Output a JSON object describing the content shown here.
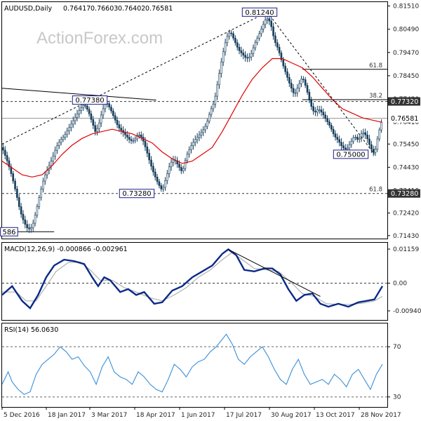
{
  "chart_data": {
    "type": "candlestick",
    "symbol": "AUDUSD,Daily",
    "ohlc": [
      "0.76417",
      "0.76603",
      "0.76402",
      "0.76581"
    ],
    "watermark": "ActionForex.com",
    "price_ticks": [
      "0.81510",
      "0.80490",
      "0.79470",
      "0.78450",
      "0.77430",
      "0.76410",
      "0.75450",
      "0.74430",
      "0.73410",
      "0.72420",
      "0.71430"
    ],
    "price_tick_values": [
      0.8151,
      0.8049,
      0.7947,
      0.7845,
      0.7743,
      0.7641,
      0.7545,
      0.7443,
      0.7341,
      0.7242,
      0.7143
    ],
    "price_range": [
      0.713,
      0.8165
    ],
    "current_price": {
      "value": 0.76581,
      "label": "0.76581"
    },
    "level_tag": {
      "value": 0.7732,
      "label": "0.77320"
    },
    "level_tag_low": {
      "value": 0.7328,
      "label": "0.73280"
    },
    "annotations": [
      {
        "label": "0.81240",
        "value": 0.8124
      },
      {
        "label": "0.77380",
        "value": 0.7738
      },
      {
        "label": "0.73280",
        "value": 0.7328
      },
      {
        "label": "0.75000",
        "value": 0.75
      },
      {
        "label": "586",
        "value": 0.716
      }
    ],
    "fib_labels": [
      {
        "label": "61.8",
        "value": 0.7873
      },
      {
        "label": "38.2",
        "value": 0.774
      },
      {
        "label": "61.8",
        "value": 0.7328
      }
    ],
    "dates": [
      "5 Dec 2016",
      "18 Jan 2017",
      "3 Mar 2017",
      "18 Apr 2017",
      "1 Jun 2017",
      "17 Jul 2017",
      "30 Aug 2017",
      "13 Oct 2017",
      "28 Nov 2017"
    ],
    "price_path": [
      [
        0,
        0.753
      ],
      [
        6,
        0.746
      ],
      [
        10,
        0.74
      ],
      [
        14,
        0.733
      ],
      [
        18,
        0.725
      ],
      [
        22,
        0.72
      ],
      [
        26,
        0.717
      ],
      [
        30,
        0.718
      ],
      [
        34,
        0.725
      ],
      [
        38,
        0.733
      ],
      [
        42,
        0.74
      ],
      [
        46,
        0.744
      ],
      [
        50,
        0.748
      ],
      [
        54,
        0.753
      ],
      [
        58,
        0.756
      ],
      [
        62,
        0.758
      ],
      [
        66,
        0.761
      ],
      [
        70,
        0.764
      ],
      [
        74,
        0.767
      ],
      [
        78,
        0.77
      ],
      [
        82,
        0.772
      ],
      [
        86,
        0.769
      ],
      [
        90,
        0.764
      ],
      [
        93,
        0.76
      ],
      [
        96,
        0.762
      ],
      [
        100,
        0.769
      ],
      [
        104,
        0.773
      ],
      [
        108,
        0.77
      ],
      [
        112,
        0.766
      ],
      [
        116,
        0.762
      ],
      [
        120,
        0.76
      ],
      [
        124,
        0.758
      ],
      [
        128,
        0.756
      ],
      [
        132,
        0.756
      ],
      [
        136,
        0.759
      ],
      [
        140,
        0.757
      ],
      [
        144,
        0.752
      ],
      [
        148,
        0.746
      ],
      [
        152,
        0.741
      ],
      [
        156,
        0.737
      ],
      [
        160,
        0.734
      ],
      [
        164,
        0.74
      ],
      [
        168,
        0.746
      ],
      [
        172,
        0.748
      ],
      [
        176,
        0.745
      ],
      [
        180,
        0.742
      ],
      [
        184,
        0.749
      ],
      [
        188,
        0.753
      ],
      [
        192,
        0.756
      ],
      [
        196,
        0.758
      ],
      [
        200,
        0.76
      ],
      [
        204,
        0.763
      ],
      [
        208,
        0.769
      ],
      [
        212,
        0.773
      ],
      [
        216,
        0.783
      ],
      [
        220,
        0.793
      ],
      [
        224,
        0.801
      ],
      [
        228,
        0.804
      ],
      [
        232,
        0.8
      ],
      [
        236,
        0.796
      ],
      [
        240,
        0.794
      ],
      [
        244,
        0.792
      ],
      [
        248,
        0.793
      ],
      [
        252,
        0.798
      ],
      [
        256,
        0.802
      ],
      [
        260,
        0.806
      ],
      [
        264,
        0.81
      ],
      [
        268,
        0.808
      ],
      [
        272,
        0.8
      ],
      [
        276,
        0.796
      ],
      [
        280,
        0.79
      ],
      [
        284,
        0.785
      ],
      [
        288,
        0.78
      ],
      [
        292,
        0.776
      ],
      [
        296,
        0.78
      ],
      [
        300,
        0.784
      ],
      [
        304,
        0.779
      ],
      [
        308,
        0.772
      ],
      [
        312,
        0.768
      ],
      [
        316,
        0.77
      ],
      [
        320,
        0.768
      ],
      [
        324,
        0.765
      ],
      [
        328,
        0.762
      ],
      [
        332,
        0.758
      ],
      [
        336,
        0.756
      ],
      [
        340,
        0.753
      ],
      [
        344,
        0.752
      ],
      [
        348,
        0.755
      ],
      [
        352,
        0.758
      ],
      [
        356,
        0.756
      ],
      [
        360,
        0.76
      ],
      [
        364,
        0.758
      ],
      [
        368,
        0.753
      ],
      [
        372,
        0.75
      ],
      [
        376,
        0.759
      ],
      [
        380,
        0.7658
      ]
    ],
    "sma_path": [
      [
        0,
        0.747
      ],
      [
        10,
        0.744
      ],
      [
        20,
        0.741
      ],
      [
        30,
        0.74
      ],
      [
        40,
        0.741
      ],
      [
        50,
        0.745
      ],
      [
        60,
        0.75
      ],
      [
        70,
        0.754
      ],
      [
        80,
        0.757
      ],
      [
        90,
        0.759
      ],
      [
        100,
        0.76
      ],
      [
        110,
        0.761
      ],
      [
        120,
        0.76
      ],
      [
        130,
        0.759
      ],
      [
        140,
        0.757
      ],
      [
        150,
        0.755
      ],
      [
        160,
        0.751
      ],
      [
        170,
        0.748
      ],
      [
        180,
        0.746
      ],
      [
        190,
        0.747
      ],
      [
        200,
        0.75
      ],
      [
        210,
        0.753
      ],
      [
        220,
        0.76
      ],
      [
        230,
        0.768
      ],
      [
        240,
        0.776
      ],
      [
        250,
        0.783
      ],
      [
        260,
        0.788
      ],
      [
        270,
        0.792
      ],
      [
        280,
        0.792
      ],
      [
        290,
        0.79
      ],
      [
        300,
        0.788
      ],
      [
        310,
        0.784
      ],
      [
        320,
        0.779
      ],
      [
        330,
        0.774
      ],
      [
        340,
        0.77
      ],
      [
        350,
        0.768
      ],
      [
        360,
        0.766
      ],
      [
        370,
        0.765
      ],
      [
        380,
        0.764
      ]
    ],
    "trendlines": [
      {
        "from": [
          0,
          0.7545
        ],
        "to": [
          265,
          0.8124
        ]
      },
      {
        "from": [
          0,
          0.779
        ],
        "to": [
          154,
          0.7738
        ]
      },
      {
        "from": [
          265,
          0.8124
        ],
        "to": [
          372,
          0.75
        ]
      }
    ],
    "macd": {
      "header": "MACD(12,26,9) -0.000866 -0.002961",
      "ticks": [
        "0.01159",
        "0.00",
        "-0.009408"
      ],
      "tick_values": [
        0.01159,
        0.0,
        -0.009408
      ],
      "range": [
        -0.0125,
        0.0135
      ],
      "macd_path": [
        [
          0,
          -0.004
        ],
        [
          10,
          -0.001
        ],
        [
          20,
          -0.006
        ],
        [
          28,
          -0.0085
        ],
        [
          36,
          -0.004
        ],
        [
          44,
          0.002
        ],
        [
          52,
          0.006
        ],
        [
          62,
          0.008
        ],
        [
          72,
          0.0075
        ],
        [
          82,
          0.0065
        ],
        [
          90,
          0.002
        ],
        [
          96,
          -0.001
        ],
        [
          102,
          0.002
        ],
        [
          108,
          0.001
        ],
        [
          118,
          -0.003
        ],
        [
          126,
          -0.002
        ],
        [
          134,
          -0.004
        ],
        [
          142,
          -0.003
        ],
        [
          152,
          -0.007
        ],
        [
          160,
          -0.0065
        ],
        [
          170,
          -0.0025
        ],
        [
          180,
          -0.001
        ],
        [
          190,
          0.002
        ],
        [
          200,
          0.004
        ],
        [
          210,
          0.006
        ],
        [
          220,
          0.01
        ],
        [
          226,
          0.0115
        ],
        [
          234,
          0.0095
        ],
        [
          242,
          0.0045
        ],
        [
          252,
          0.004
        ],
        [
          262,
          0.005
        ],
        [
          270,
          0.005
        ],
        [
          278,
          0.003
        ],
        [
          286,
          -0.002
        ],
        [
          294,
          -0.006
        ],
        [
          302,
          -0.004
        ],
        [
          310,
          -0.0035
        ],
        [
          318,
          -0.007
        ],
        [
          326,
          -0.008
        ],
        [
          336,
          -0.007
        ],
        [
          346,
          -0.008
        ],
        [
          356,
          -0.0065
        ],
        [
          364,
          -0.006
        ],
        [
          372,
          -0.0055
        ],
        [
          380,
          -0.001
        ]
      ],
      "signal_path": [
        [
          0,
          -0.003
        ],
        [
          14,
          -0.003
        ],
        [
          24,
          -0.006
        ],
        [
          34,
          -0.006
        ],
        [
          44,
          -0.001
        ],
        [
          54,
          0.004
        ],
        [
          66,
          0.007
        ],
        [
          78,
          0.0072
        ],
        [
          88,
          0.0045
        ],
        [
          98,
          0.001
        ],
        [
          110,
          0.001
        ],
        [
          122,
          -0.0015
        ],
        [
          134,
          -0.003
        ],
        [
          148,
          -0.005
        ],
        [
          160,
          -0.006
        ],
        [
          172,
          -0.004
        ],
        [
          184,
          -0.0015
        ],
        [
          196,
          0.002
        ],
        [
          208,
          0.0045
        ],
        [
          220,
          0.008
        ],
        [
          230,
          0.0105
        ],
        [
          240,
          0.008
        ],
        [
          252,
          0.005
        ],
        [
          264,
          0.0045
        ],
        [
          276,
          0.004
        ],
        [
          288,
          0.0005
        ],
        [
          300,
          -0.0035
        ],
        [
          312,
          -0.0045
        ],
        [
          324,
          -0.007
        ],
        [
          336,
          -0.0072
        ],
        [
          348,
          -0.0072
        ],
        [
          360,
          -0.0068
        ],
        [
          372,
          -0.006
        ],
        [
          380,
          -0.0045
        ]
      ],
      "trendline": {
        "from": [
          226,
          0.0115
        ],
        "to": [
          318,
          -0.0045
        ]
      }
    },
    "rsi": {
      "header": "RSI(14) 56.0630",
      "ticks": [
        "70",
        "30"
      ],
      "tick_values": [
        70,
        30
      ],
      "range": [
        22,
        88
      ],
      "path": [
        [
          0,
          40
        ],
        [
          6,
          50
        ],
        [
          10,
          42
        ],
        [
          16,
          36
        ],
        [
          22,
          32
        ],
        [
          28,
          34
        ],
        [
          34,
          48
        ],
        [
          40,
          56
        ],
        [
          46,
          60
        ],
        [
          52,
          64
        ],
        [
          58,
          70
        ],
        [
          64,
          66
        ],
        [
          70,
          60
        ],
        [
          76,
          62
        ],
        [
          82,
          55
        ],
        [
          88,
          50
        ],
        [
          94,
          40
        ],
        [
          100,
          54
        ],
        [
          106,
          62
        ],
        [
          112,
          50
        ],
        [
          118,
          46
        ],
        [
          124,
          44
        ],
        [
          130,
          40
        ],
        [
          136,
          50
        ],
        [
          142,
          46
        ],
        [
          148,
          40
        ],
        [
          154,
          36
        ],
        [
          160,
          34
        ],
        [
          166,
          44
        ],
        [
          172,
          56
        ],
        [
          178,
          52
        ],
        [
          184,
          46
        ],
        [
          190,
          54
        ],
        [
          196,
          58
        ],
        [
          202,
          60
        ],
        [
          208,
          66
        ],
        [
          214,
          70
        ],
        [
          220,
          76
        ],
        [
          224,
          80
        ],
        [
          230,
          72
        ],
        [
          236,
          60
        ],
        [
          242,
          56
        ],
        [
          248,
          62
        ],
        [
          254,
          66
        ],
        [
          260,
          70
        ],
        [
          266,
          62
        ],
        [
          272,
          52
        ],
        [
          278,
          44
        ],
        [
          284,
          40
        ],
        [
          290,
          52
        ],
        [
          296,
          60
        ],
        [
          302,
          48
        ],
        [
          308,
          40
        ],
        [
          314,
          42
        ],
        [
          320,
          44
        ],
        [
          326,
          40
        ],
        [
          332,
          48
        ],
        [
          338,
          44
        ],
        [
          344,
          38
        ],
        [
          350,
          48
        ],
        [
          356,
          52
        ],
        [
          362,
          44
        ],
        [
          368,
          36
        ],
        [
          374,
          48
        ],
        [
          380,
          56
        ]
      ]
    }
  }
}
